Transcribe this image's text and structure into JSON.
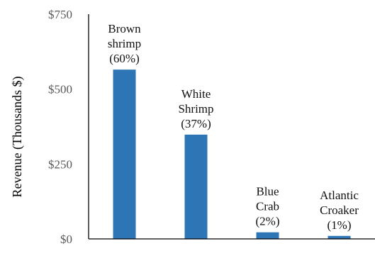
{
  "chart_data": {
    "type": "bar",
    "title": "",
    "xlabel": "",
    "ylabel": "Revenue (Thousands $)",
    "ylim": [
      0,
      750
    ],
    "yticks": [
      0,
      250,
      500,
      750
    ],
    "ytick_labels": [
      "$0",
      "$250",
      "$500",
      "$750"
    ],
    "grid": false,
    "categories": [
      "Brown shrimp",
      "White Shrimp",
      "Blue Crab",
      "Atlantic Croaker"
    ],
    "values": [
      565,
      348,
      22,
      10
    ],
    "data_labels": [
      [
        "Brown",
        "shrimp",
        "(60%)"
      ],
      [
        "White",
        "Shrimp",
        "(37%)"
      ],
      [
        "Blue",
        "Crab",
        "(2%)"
      ],
      [
        "Atlantic",
        "Croaker",
        "(1%)"
      ]
    ],
    "bar_color": "#2E75B6",
    "axis_color": "#000000"
  }
}
